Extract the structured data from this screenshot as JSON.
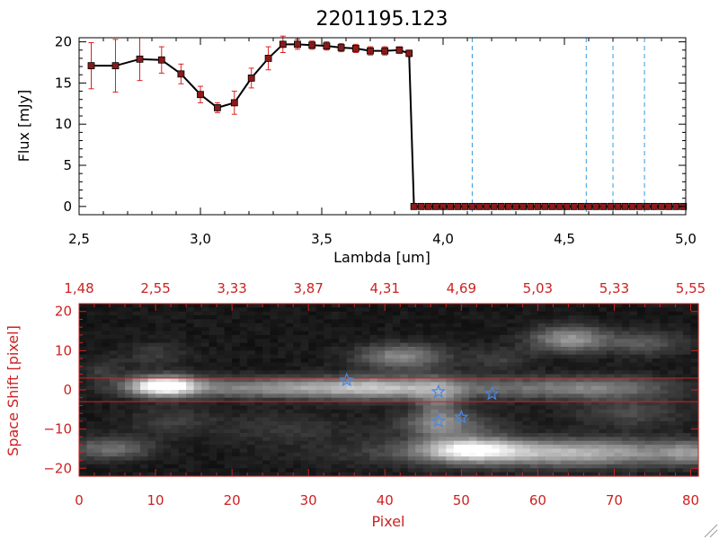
{
  "title": "2201195.123",
  "chart_data": [
    {
      "type": "line",
      "xlabel": "Lambda [um]",
      "ylabel": "Flux [mJy]",
      "xlim": [
        2.5,
        5.0
      ],
      "ylim": [
        -1,
        20.5
      ],
      "x_ticks": [
        2.5,
        3.0,
        3.5,
        4.0,
        4.5,
        5.0
      ],
      "x_tick_labels": [
        "2,5",
        "3,0",
        "3,5",
        "4,0",
        "4,5",
        "5,0"
      ],
      "y_ticks": [
        0,
        5,
        10,
        15,
        20
      ],
      "y_tick_labels": [
        "0",
        "5",
        "10",
        "15",
        "20"
      ],
      "grid": false,
      "series": [
        {
          "marker": "square",
          "line_color": "#000000",
          "marker_color": "#8b1a1a",
          "errorbar_color": "#e02020",
          "x": [
            2.55,
            2.65,
            2.75,
            2.84,
            2.92,
            3.0,
            3.07,
            3.14,
            3.21,
            3.28,
            3.34,
            3.4,
            3.46,
            3.52,
            3.58,
            3.64,
            3.7,
            3.76,
            3.82,
            3.86,
            3.88,
            3.91,
            3.94,
            3.97,
            4.0,
            4.03,
            4.06,
            4.09,
            4.12,
            4.15,
            4.18,
            4.21,
            4.24,
            4.27,
            4.3,
            4.33,
            4.36,
            4.39,
            4.42,
            4.45,
            4.48,
            4.51,
            4.54,
            4.57,
            4.6,
            4.63,
            4.66,
            4.69,
            4.72,
            4.75,
            4.78,
            4.81,
            4.84,
            4.87,
            4.9,
            4.93,
            4.96,
            4.99
          ],
          "y": [
            17.1,
            17.1,
            17.9,
            17.8,
            16.1,
            13.6,
            12.0,
            12.6,
            15.6,
            18.0,
            19.7,
            19.7,
            19.6,
            19.5,
            19.3,
            19.2,
            18.9,
            18.9,
            19.0,
            18.6,
            0,
            0,
            0,
            0,
            0,
            0,
            0,
            0,
            0,
            0,
            0,
            0,
            0,
            0,
            0,
            0,
            0,
            0,
            0,
            0,
            0,
            0,
            0,
            0,
            0,
            0,
            0,
            0,
            0,
            0,
            0,
            0,
            0,
            0,
            0,
            0,
            0,
            0
          ],
          "yerr": [
            2.8,
            3.2,
            2.6,
            1.6,
            1.2,
            1.0,
            0.6,
            1.4,
            1.2,
            1.4,
            1.0,
            0.6,
            0.5,
            0.5,
            0.5,
            0.5,
            0.5,
            0.5,
            0.4,
            0.4,
            0,
            0,
            0,
            0,
            0,
            0,
            0,
            0,
            0,
            0,
            0,
            0,
            0,
            0,
            0,
            0,
            0,
            0,
            0,
            0,
            0,
            0,
            0,
            0,
            0,
            0,
            0,
            0,
            0,
            0,
            0,
            0,
            0,
            0,
            0,
            0,
            0,
            0
          ]
        }
      ],
      "vertical_lines": {
        "color": "#3399dd",
        "style": "dashed",
        "x": [
          4.12,
          4.59,
          4.7,
          4.83
        ]
      },
      "annotations": [
        {
          "type": "hline",
          "y": 0,
          "style": "dashed",
          "color": "#cc2222",
          "x_from": 3.88,
          "x_to": 5.0
        }
      ]
    },
    {
      "type": "heatmap",
      "colormap": "grayscale",
      "xlabel": "Pixel",
      "ylabel": "Space Shift [pixel]",
      "xlim": [
        0,
        81
      ],
      "ylim": [
        -22,
        22
      ],
      "x_ticks": [
        0,
        10,
        20,
        30,
        40,
        50,
        60,
        70,
        80
      ],
      "x_tick_labels": [
        "0",
        "10",
        "20",
        "30",
        "40",
        "50",
        "60",
        "70",
        "80"
      ],
      "y_ticks": [
        -20,
        -10,
        0,
        10,
        20
      ],
      "y_tick_labels": [
        "−20",
        "−10",
        "0",
        "10",
        "20"
      ],
      "top_axis_ticks": [
        0,
        10,
        20,
        30,
        40,
        50,
        60,
        70,
        80
      ],
      "top_axis_labels": [
        "1,48",
        "2,55",
        "3,33",
        "3,87",
        "4,31",
        "4,69",
        "5,03",
        "5,33",
        "5,55"
      ],
      "axis_color": "#cc2222",
      "background_level": 0.06,
      "blobs": [
        {
          "x": 11,
          "y": 1,
          "sx": 3.2,
          "sy": 1.8,
          "a": 0.95
        },
        {
          "x": 28,
          "y": 0.5,
          "sx": 12,
          "sy": 1.8,
          "a": 0.5
        },
        {
          "x": 40,
          "y": 0.5,
          "sx": 6,
          "sy": 2.2,
          "a": 0.35
        },
        {
          "x": 42,
          "y": 8.5,
          "sx": 4,
          "sy": 2.2,
          "a": 0.45
        },
        {
          "x": 59,
          "y": 0.5,
          "sx": 9,
          "sy": 2.0,
          "a": 0.3
        },
        {
          "x": 70,
          "y": 0.5,
          "sx": 6,
          "sy": 2.0,
          "a": 0.25
        },
        {
          "x": 64,
          "y": 13,
          "sx": 3.5,
          "sy": 2.3,
          "a": 0.5
        },
        {
          "x": 74,
          "y": 12,
          "sx": 4,
          "sy": 2.2,
          "a": 0.25
        },
        {
          "x": 62,
          "y": -16,
          "sx": 14,
          "sy": 2.4,
          "a": 0.65
        },
        {
          "x": 51,
          "y": -15,
          "sx": 4,
          "sy": 2.0,
          "a": 0.55
        },
        {
          "x": 47,
          "y": -4,
          "sx": 2.2,
          "sy": 5,
          "a": 0.3
        },
        {
          "x": 48,
          "y": -9,
          "sx": 5,
          "sy": 2.2,
          "a": 0.3
        },
        {
          "x": 4,
          "y": -15,
          "sx": 4,
          "sy": 2,
          "a": 0.35
        },
        {
          "x": 10,
          "y": 9,
          "sx": 3,
          "sy": 2,
          "a": 0.15
        },
        {
          "x": 12,
          "y": -8,
          "sx": 4,
          "sy": 2.5,
          "a": 0.15
        },
        {
          "x": 3,
          "y": 5,
          "sx": 2,
          "sy": 2,
          "a": 0.15
        },
        {
          "x": 72,
          "y": -6,
          "sx": 5,
          "sy": 2.5,
          "a": 0.2
        },
        {
          "x": 80,
          "y": -16,
          "sx": 2.5,
          "sy": 2.0,
          "a": 0.25
        },
        {
          "x": 55,
          "y": 8,
          "sx": 3,
          "sy": 2,
          "a": 0.15
        },
        {
          "x": 27,
          "y": -10,
          "sx": 6,
          "sy": 3,
          "a": 0.12
        }
      ],
      "aperture_lines": {
        "color": "#cc2222",
        "y": [
          3,
          -3
        ]
      },
      "stars": {
        "color": "#4488ee",
        "points": [
          {
            "x": 35,
            "y": 2.5
          },
          {
            "x": 47,
            "y": -0.5
          },
          {
            "x": 54,
            "y": -1.0
          },
          {
            "x": 47,
            "y": -8.0
          },
          {
            "x": 50,
            "y": -7.0
          }
        ]
      }
    }
  ]
}
